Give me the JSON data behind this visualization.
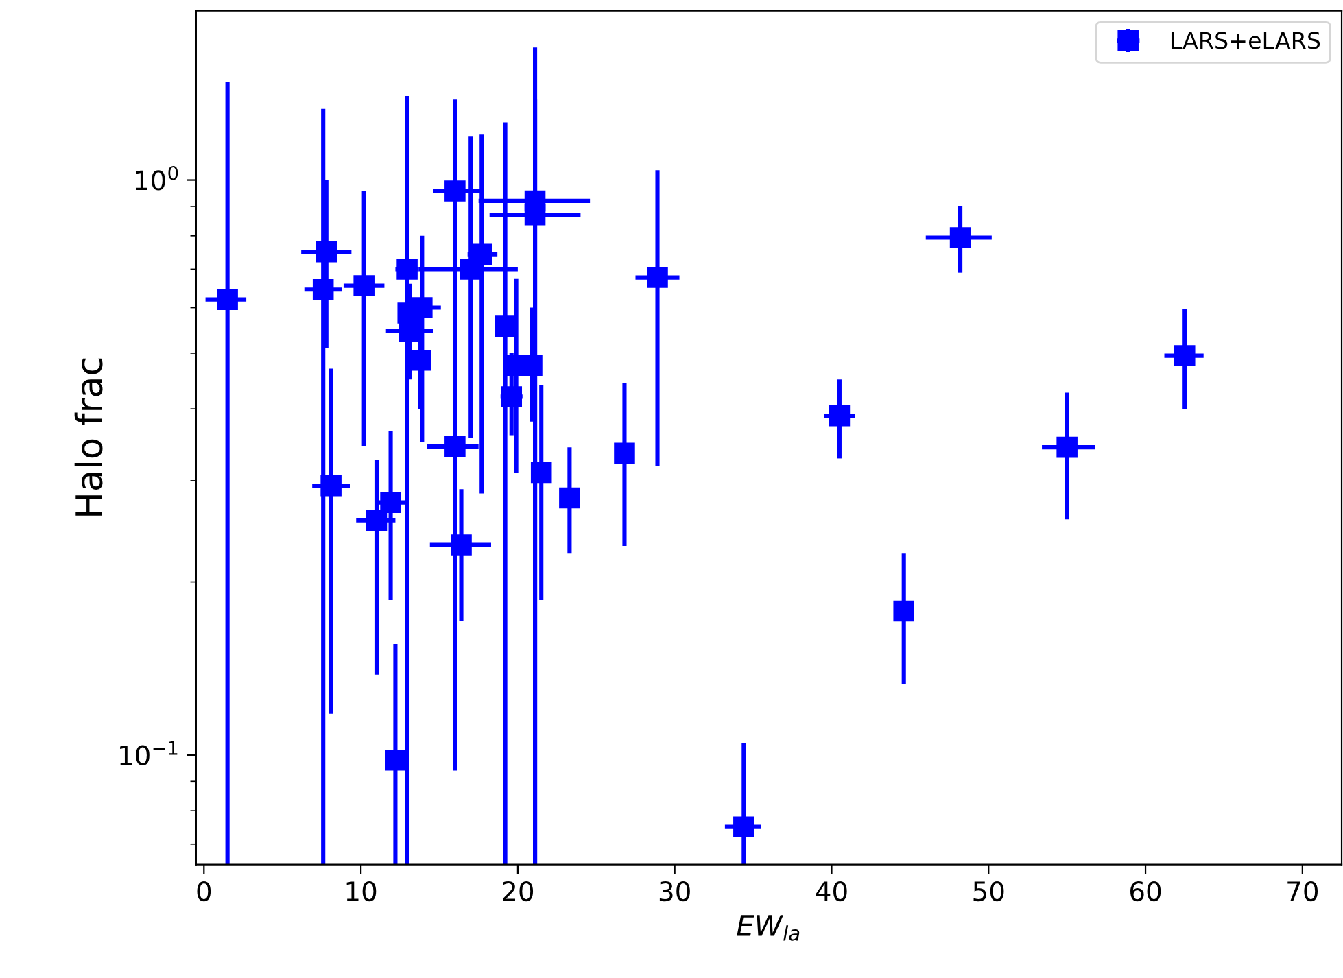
{
  "chart_data": {
    "type": "scatter",
    "xlabel": "EW$_{la}$",
    "ylabel": "Halo frac",
    "log": "y",
    "legend": "top right",
    "marker": "square",
    "xlim": [
      -0.5,
      72.5
    ],
    "xticks": [
      0,
      10,
      20,
      30,
      40,
      50,
      60,
      70
    ],
    "ylim": [
      0.0645,
      1.97
    ],
    "yticks": [
      {
        "value": 0.07,
        "label": null
      },
      {
        "value": 0.08,
        "label": null
      },
      {
        "value": 0.09,
        "label": null
      },
      {
        "value": 0.1,
        "label": "10$^{−1}$"
      },
      {
        "value": 0.2,
        "label": null
      },
      {
        "value": 0.3,
        "label": null
      },
      {
        "value": 0.4,
        "label": null
      },
      {
        "value": 0.5,
        "label": null
      },
      {
        "value": 0.6,
        "label": null
      },
      {
        "value": 0.7,
        "label": null
      },
      {
        "value": 0.8,
        "label": null
      },
      {
        "value": 0.9,
        "label": null
      },
      {
        "value": 1,
        "label": "10$^{0}$"
      }
    ],
    "series": [
      {
        "name": "LARS+eLARS",
        "color": "#0000ff",
        "x": [
          1.5,
          7.6,
          7.8,
          10.2,
          8.1,
          11.0,
          11.9,
          12.2,
          12.95,
          13.0,
          13.1,
          13.9,
          13.8,
          16.0,
          16.0,
          16.4,
          17.0,
          17.7,
          19.2,
          19.6,
          19.9,
          20.9,
          21.1,
          21.1,
          21.5,
          23.3,
          26.8,
          28.9,
          34.4,
          40.5,
          44.6,
          48.2,
          55.0,
          62.5
        ],
        "values": [
          0.62,
          0.645,
          0.75,
          0.655,
          0.294,
          0.256,
          0.275,
          0.098,
          0.7,
          0.587,
          0.546,
          0.6,
          0.486,
          0.957,
          0.344,
          0.232,
          0.7,
          0.743,
          0.557,
          0.42,
          0.476,
          0.476,
          0.92,
          0.87,
          0.31,
          0.28,
          0.335,
          0.677,
          0.075,
          0.389,
          0.178,
          0.794,
          0.343,
          0.495
        ],
        "errors": [
          [
            0.0645,
            1.48
          ],
          [
            0.0645,
            1.33
          ],
          [
            0.51,
            1.0
          ],
          [
            0.344,
            0.957
          ],
          [
            0.118,
            0.47
          ],
          [
            0.138,
            0.326
          ],
          [
            0.186,
            0.366
          ],
          [
            0.0645,
            0.156
          ],
          [
            0.0645,
            1.4
          ],
          null,
          [
            0.45,
            0.66
          ],
          [
            0.35,
            0.8
          ],
          [
            0.4,
            0.577
          ],
          [
            0.4,
            1.38
          ],
          [
            0.094,
            0.52
          ],
          [
            0.171,
            0.29
          ],
          [
            0.356,
            1.19
          ],
          [
            0.285,
            1.2
          ],
          [
            0.0645,
            1.26
          ],
          [
            0.36,
            0.5
          ],
          [
            0.31,
            0.673
          ],
          [
            0.38,
            0.6
          ],
          [
            0.0645,
            1.7
          ],
          [
            0.0645,
            1.38
          ],
          [
            0.186,
            0.44
          ],
          [
            0.224,
            0.343
          ],
          [
            0.231,
            0.443
          ],
          [
            0.318,
            1.04
          ],
          [
            0.0645,
            0.105
          ],
          [
            0.328,
            0.45
          ],
          [
            0.133,
            0.224
          ],
          [
            0.69,
            0.9
          ],
          [
            0.257,
            0.427
          ],
          [
            0.4,
            0.597
          ]
        ],
        "xerrors": [
          [
            0.1,
            2.7
          ],
          [
            6.4,
            8.8
          ],
          [
            6.2,
            9.4
          ],
          [
            8.9,
            11.5
          ],
          [
            6.9,
            9.3
          ],
          [
            9.7,
            12.2
          ],
          [
            11.0,
            12.8
          ],
          null,
          [
            12.2,
            13.7
          ],
          null,
          1.5,
          1.2,
          null,
          [
            14.6,
            17.7
          ],
          [
            14.2,
            17.5
          ],
          [
            14.4,
            18.3
          ],
          [
            13.7,
            20.0
          ],
          [
            16.8,
            18.7
          ],
          null,
          [
            18.9,
            20.3
          ],
          null,
          null,
          [
            17.5,
            24.6
          ],
          [
            18.2,
            24.0
          ],
          [
            20.9,
            22.1
          ],
          null,
          null,
          [
            27.5,
            30.3
          ],
          [
            33.2,
            35.5
          ],
          [
            39.5,
            41.5
          ],
          null,
          [
            46.0,
            50.2
          ],
          [
            53.4,
            56.8
          ],
          [
            61.2,
            63.7
          ]
        ]
      }
    ]
  }
}
